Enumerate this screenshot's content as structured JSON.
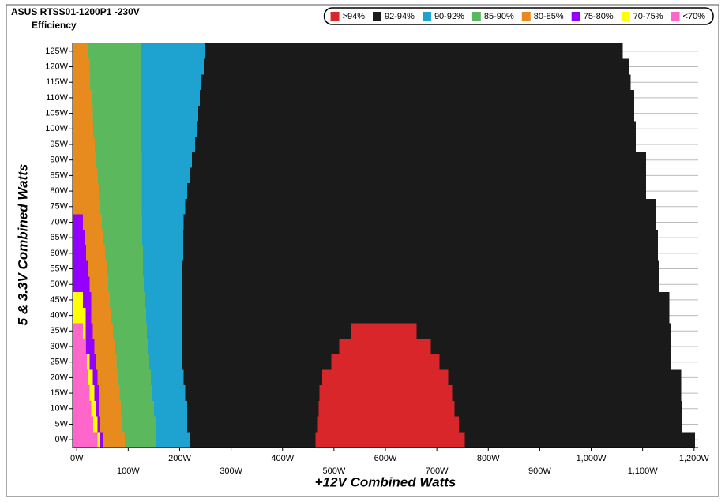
{
  "chart_data": {
    "type": "band-map",
    "title": "ASUS RTSS01-1200P1 -230V",
    "subtitle": "Efficiency",
    "x_label": "+12V Combined Watts",
    "y_label": "5 & 3.3V Combined Watts",
    "y": [
      0,
      5,
      10,
      15,
      20,
      25,
      30,
      35,
      40,
      45,
      50,
      55,
      60,
      65,
      70,
      75,
      80,
      85,
      90,
      95,
      100,
      105,
      110,
      115,
      120,
      125
    ],
    "xlim": [
      -8,
      1208
    ],
    "ylim": [
      -2.5,
      127.5
    ],
    "xticks": [
      {
        "value": 0,
        "label": "0W"
      },
      {
        "value": 100,
        "label": "100W"
      },
      {
        "value": 200,
        "label": "200W"
      },
      {
        "value": 300,
        "label": "300W"
      },
      {
        "value": 400,
        "label": "400W"
      },
      {
        "value": 500,
        "label": "500W"
      },
      {
        "value": 600,
        "label": "600W"
      },
      {
        "value": 700,
        "label": "700W"
      },
      {
        "value": 800,
        "label": "800W"
      },
      {
        "value": 900,
        "label": "900W"
      },
      {
        "value": 1000,
        "label": "1,000W"
      },
      {
        "value": 1100,
        "label": "1,100W"
      },
      {
        "value": 1200,
        "label": "1,200W"
      }
    ],
    "yticks": [
      {
        "value": 0,
        "label": "0W"
      },
      {
        "value": 5,
        "label": "5W"
      },
      {
        "value": 10,
        "label": "10W"
      },
      {
        "value": 15,
        "label": "15W"
      },
      {
        "value": 20,
        "label": "20W"
      },
      {
        "value": 25,
        "label": "25W"
      },
      {
        "value": 30,
        "label": "30W"
      },
      {
        "value": 35,
        "label": "35W"
      },
      {
        "value": 40,
        "label": "40W"
      },
      {
        "value": 45,
        "label": "45W"
      },
      {
        "value": 50,
        "label": "50W"
      },
      {
        "value": 55,
        "label": "55W"
      },
      {
        "value": 60,
        "label": "60W"
      },
      {
        "value": 65,
        "label": "65W"
      },
      {
        "value": 70,
        "label": "70W"
      },
      {
        "value": 75,
        "label": "75W"
      },
      {
        "value": 80,
        "label": "80W"
      },
      {
        "value": 85,
        "label": "85W"
      },
      {
        "value": 90,
        "label": "90W"
      },
      {
        "value": 95,
        "label": "95W"
      },
      {
        "value": 100,
        "label": "100W"
      },
      {
        "value": 105,
        "label": "105W"
      },
      {
        "value": 110,
        "label": "110W"
      },
      {
        "value": 115,
        "label": "115W"
      },
      {
        "value": 120,
        "label": "120W"
      },
      {
        "value": 125,
        "label": "125W"
      }
    ],
    "grid": true,
    "legend": "top-right",
    "series": [
      {
        "name": ">94%",
        "color": "#d9262a",
        "start": [
          464,
          469,
          470,
          472,
          477,
          495,
          510,
          533,
          null,
          null,
          null,
          null,
          null,
          null,
          null,
          null,
          null,
          null,
          null,
          null,
          null,
          null,
          null,
          null,
          null,
          null
        ],
        "values": [
          754,
          743,
          734,
          730,
          722,
          705,
          688,
          661,
          null,
          null,
          null,
          null,
          null,
          null,
          null,
          null,
          null,
          null,
          null,
          null,
          null,
          null,
          null,
          null,
          null,
          null
        ]
      },
      {
        "name": "92-94%",
        "color": "#1a1a1a",
        "values": [
          1202,
          1177,
          1177,
          1175,
          1175,
          1156,
          1154,
          1154,
          1152,
          1152,
          1133,
          1133,
          1130,
          1130,
          1127,
          1127,
          1107,
          1107,
          1107,
          1087,
          1087,
          1084,
          1084,
          1077,
          1073,
          1061
        ]
      },
      {
        "name": "90-92%",
        "color": "#1ea2d0",
        "values": [
          221,
          215,
          215,
          211,
          208,
          204,
          204,
          204,
          204,
          204,
          204,
          205,
          207,
          207,
          208,
          211,
          215,
          219,
          224,
          230,
          234,
          236,
          239,
          242,
          247,
          250
        ]
      },
      {
        "name": "85-90%",
        "color": "#5cb85c",
        "values": [
          155,
          153,
          150,
          147,
          144,
          141,
          138,
          136,
          135,
          133,
          130,
          129,
          129,
          127,
          127,
          126,
          126,
          126,
          126,
          124,
          124,
          124,
          124,
          124,
          124,
          124
        ]
      },
      {
        "name": "80-85%",
        "color": "#e88b1f",
        "values": [
          93,
          89,
          86,
          83,
          80,
          77,
          74,
          70,
          67,
          64,
          61,
          58,
          55,
          52,
          49,
          46,
          43,
          40,
          37,
          35,
          32,
          31,
          29,
          26,
          25,
          23
        ]
      },
      {
        "name": "75-80%",
        "color": "#9400ff",
        "values": [
          52,
          46,
          43,
          43,
          40,
          37,
          34,
          31,
          28,
          28,
          25,
          21,
          18,
          15,
          12,
          null,
          null,
          null,
          null,
          null,
          null,
          null,
          null,
          null,
          null,
          null
        ]
      },
      {
        "name": "70-75%",
        "color": "#ffff00",
        "values": [
          46,
          40,
          37,
          34,
          31,
          25,
          17,
          17,
          17,
          12,
          null,
          null,
          null,
          null,
          null,
          null,
          null,
          null,
          null,
          null,
          null,
          null,
          null,
          null,
          null,
          null
        ]
      },
      {
        "name": "<70%",
        "color": "#ff66cc",
        "values": [
          40,
          32,
          28,
          25,
          21,
          20,
          15,
          12,
          null,
          null,
          null,
          null,
          null,
          null,
          null,
          null,
          null,
          null,
          null,
          null,
          null,
          null,
          null,
          null,
          null,
          null
        ]
      }
    ]
  }
}
